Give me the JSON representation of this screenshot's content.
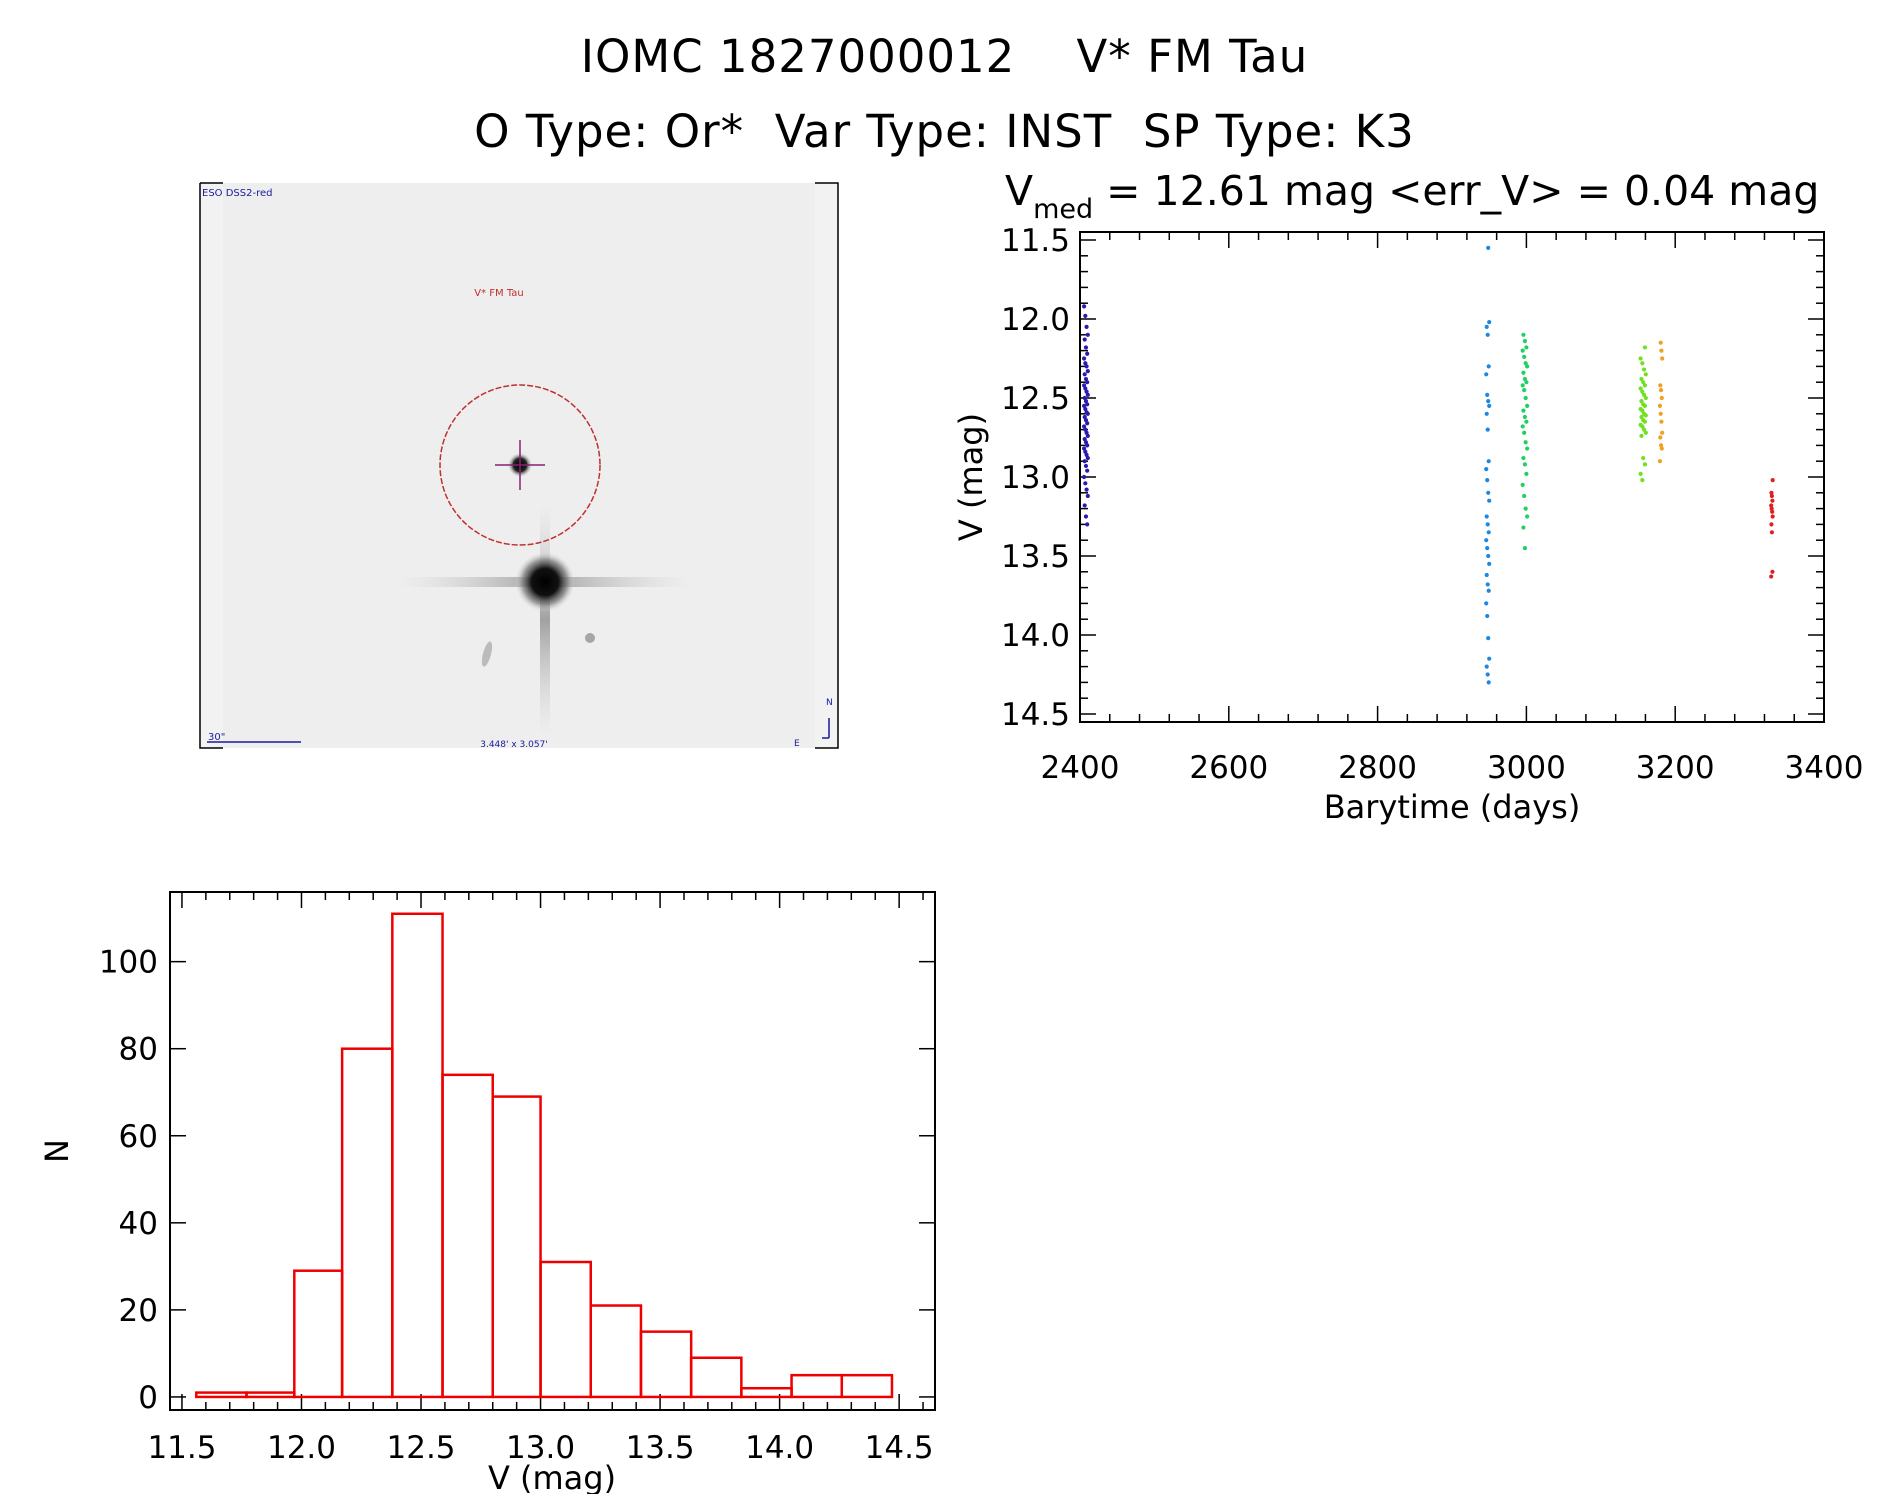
{
  "header": {
    "line1_id": "IOMC 1827000012",
    "line1_name": "V* FM Tau",
    "line2_otype": "O Type: Or*",
    "line2_vartype": "Var Type: INST",
    "line2_sptype": "SP Type: K3"
  },
  "finder_image": {
    "survey_label": "ESO DSS2-red",
    "target_label": "V* FM Tau",
    "scale_label": "30\"",
    "fov_label": "3.448' x 3.057'",
    "north_label": "N",
    "east_label": "E",
    "colors": {
      "label_blue": "#1a1aa0",
      "target_red": "#c03030",
      "crosshair": "#8a2070"
    }
  },
  "chart_data": [
    {
      "id": "light_curve",
      "type": "scatter",
      "title_prefix": "V",
      "title_sub": "med",
      "title_rest": " = 12.61 mag <err_V> = 0.04 mag",
      "vmed": 12.61,
      "err_v": 0.04,
      "xlabel": "Barytime (days)",
      "ylabel": "V (mag)",
      "xlim": [
        2400,
        3400
      ],
      "ylim": [
        11.5,
        14.5
      ],
      "y_inverted": true,
      "x_ticks": [
        2400,
        2600,
        2800,
        3000,
        3200,
        3400
      ],
      "y_ticks": [
        "11.5",
        "12.0",
        "12.5",
        "13.0",
        "13.5",
        "14.0",
        "14.5"
      ],
      "series": [
        {
          "color": "#2a1ab0",
          "x": 2408,
          "x_jitter": 2.5,
          "y": [
            11.92,
            11.98,
            12.05,
            12.1,
            12.13,
            12.18,
            12.22,
            12.25,
            12.28,
            12.3,
            12.33,
            12.35,
            12.38,
            12.4,
            12.42,
            12.44,
            12.46,
            12.48,
            12.5,
            12.52,
            12.54,
            12.55,
            12.57,
            12.59,
            12.6,
            12.62,
            12.64,
            12.66,
            12.68,
            12.7,
            12.72,
            12.74,
            12.76,
            12.78,
            12.8,
            12.82,
            12.84,
            12.86,
            12.88,
            12.9,
            12.93,
            12.96,
            13.0,
            13.04,
            13.08,
            13.12,
            13.18,
            13.25,
            13.3
          ]
        },
        {
          "color": "#1e88e0",
          "x": 2948,
          "x_jitter": 2,
          "y": [
            11.55,
            12.02,
            12.05,
            12.1,
            12.3,
            12.35,
            12.48,
            12.52,
            12.55,
            12.6,
            12.7,
            12.9,
            12.95,
            13.02,
            13.1,
            13.15,
            13.25,
            13.3,
            13.35,
            13.4,
            13.45,
            13.5,
            13.55,
            13.62,
            13.68,
            13.72,
            13.8,
            13.88,
            14.02,
            14.15,
            14.2,
            14.25,
            14.3
          ]
        },
        {
          "color": "#20d060",
          "x": 2998,
          "x_jitter": 3,
          "y": [
            12.1,
            12.14,
            12.18,
            12.2,
            12.24,
            12.28,
            12.3,
            12.34,
            12.38,
            12.4,
            12.42,
            12.45,
            12.5,
            12.55,
            12.58,
            12.62,
            12.65,
            12.68,
            12.72,
            12.78,
            12.82,
            12.88,
            12.92,
            12.98,
            13.05,
            13.12,
            13.2,
            13.25,
            13.32,
            13.45
          ]
        },
        {
          "color": "#70e020",
          "x": 3157,
          "x_jitter": 3.5,
          "y": [
            12.18,
            12.25,
            12.28,
            12.32,
            12.35,
            12.38,
            12.4,
            12.42,
            12.44,
            12.46,
            12.48,
            12.5,
            12.52,
            12.54,
            12.55,
            12.57,
            12.58,
            12.6,
            12.61,
            12.62,
            12.64,
            12.65,
            12.67,
            12.68,
            12.7,
            12.72,
            12.74,
            12.88,
            12.92,
            12.98,
            13.02
          ]
        },
        {
          "color": "#f0a020",
          "x": 3181,
          "x_jitter": 1.5,
          "y": [
            12.15,
            12.2,
            12.25,
            12.42,
            12.45,
            12.5,
            12.55,
            12.6,
            12.65,
            12.72,
            12.75,
            12.8,
            12.82,
            12.9
          ]
        },
        {
          "color": "#e02020",
          "x": 3330,
          "x_jitter": 1,
          "y": [
            13.02,
            13.1,
            13.12,
            13.15,
            13.18,
            13.2,
            13.22,
            13.25,
            13.3,
            13.35,
            13.6,
            13.63
          ]
        }
      ]
    },
    {
      "id": "histogram",
      "type": "bar",
      "xlabel": "V (mag)",
      "ylabel": "N",
      "xlim": [
        11.45,
        14.65
      ],
      "ylim": [
        -3,
        116
      ],
      "x_ticks": [
        "11.5",
        "12.0",
        "12.5",
        "13.0",
        "13.5",
        "14.0",
        "14.5"
      ],
      "y_ticks": [
        "0",
        "20",
        "40",
        "60",
        "80",
        "100"
      ],
      "bin_edges": [
        11.56,
        11.77,
        11.97,
        12.17,
        12.38,
        12.59,
        12.8,
        13.0,
        13.21,
        13.42,
        13.63,
        13.84,
        14.05,
        14.26,
        14.47
      ],
      "values": [
        1,
        1,
        29,
        80,
        111,
        74,
        69,
        31,
        21,
        15,
        9,
        2,
        5,
        5
      ],
      "bar_color": "#ee0000"
    }
  ]
}
